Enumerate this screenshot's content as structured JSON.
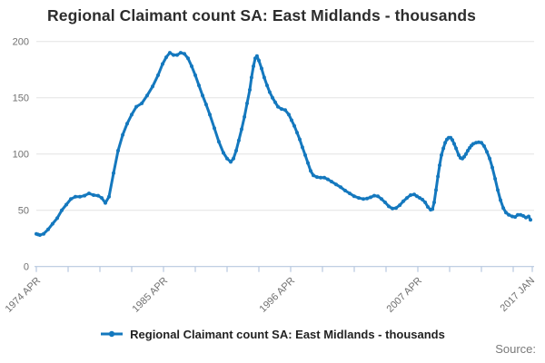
{
  "title": "Regional Claimant count SA: East Midlands - thousands",
  "legend": {
    "marker_icon": "line-dot-icon",
    "label": "Regional Claimant count SA: East Midlands - thousands"
  },
  "source_label": "Source:",
  "colors": {
    "line": "#1478BE",
    "grid": "#E4E4E4",
    "axis": "#B7C8DF",
    "tick_label": "#707070",
    "title_text": "#2D2D2D",
    "legend_text": "#222222",
    "source_text": "#7A7A7A",
    "background": "#FFFFFF"
  },
  "chart_data": {
    "type": "line",
    "title": "Regional Claimant count SA: East Midlands - thousands",
    "series_name": "Regional Claimant count SA: East Midlands - thousands",
    "units": "thousands",
    "grid": "horizontal-only",
    "legend_position": "bottom-center",
    "y_axis": {
      "ticks": [
        0,
        50,
        100,
        150,
        200
      ],
      "range": [
        0,
        200
      ]
    },
    "x_axis": {
      "range_year": [
        1974.25,
        2017.0
      ],
      "minor_tick_spacing_px": 35,
      "labels": [
        {
          "year": 1974.25,
          "text": "1974 APR"
        },
        {
          "year": 1985.25,
          "text": "1985 APR"
        },
        {
          "year": 1996.25,
          "text": "1996 APR"
        },
        {
          "year": 2007.25,
          "text": "2007 APR"
        },
        {
          "year": 2017.0,
          "text": "2017 JAN"
        }
      ]
    },
    "points": [
      [
        1974.25,
        29
      ],
      [
        1974.4,
        28.5
      ],
      [
        1974.56,
        28
      ],
      [
        1974.88,
        29
      ],
      [
        1975.27,
        33
      ],
      [
        1975.66,
        38
      ],
      [
        1976.06,
        43
      ],
      [
        1976.45,
        50
      ],
      [
        1976.84,
        55
      ],
      [
        1977.24,
        60
      ],
      [
        1977.63,
        62
      ],
      [
        1978.02,
        62
      ],
      [
        1978.42,
        63
      ],
      [
        1978.81,
        65
      ],
      [
        1979.2,
        63.5
      ],
      [
        1979.59,
        63
      ],
      [
        1979.91,
        61
      ],
      [
        1980.22,
        56.5
      ],
      [
        1980.54,
        62
      ],
      [
        1980.93,
        83
      ],
      [
        1981.32,
        103
      ],
      [
        1981.72,
        117
      ],
      [
        1982.11,
        127
      ],
      [
        1982.5,
        135
      ],
      [
        1982.9,
        142
      ],
      [
        1983.37,
        145
      ],
      [
        1983.84,
        152
      ],
      [
        1984.31,
        160
      ],
      [
        1984.78,
        170
      ],
      [
        1985.17,
        180
      ],
      [
        1985.49,
        186
      ],
      [
        1985.8,
        190
      ],
      [
        1986.12,
        188
      ],
      [
        1986.43,
        188
      ],
      [
        1986.74,
        190
      ],
      [
        1987.06,
        189
      ],
      [
        1987.37,
        185
      ],
      [
        1987.69,
        178
      ],
      [
        1988.0,
        170
      ],
      [
        1988.32,
        161
      ],
      [
        1988.63,
        152
      ],
      [
        1988.94,
        144
      ],
      [
        1989.26,
        135
      ],
      [
        1989.65,
        123
      ],
      [
        1990.04,
        111
      ],
      [
        1990.44,
        101
      ],
      [
        1990.75,
        96
      ],
      [
        1991.07,
        93
      ],
      [
        1991.3,
        96
      ],
      [
        1991.54,
        103
      ],
      [
        1991.77,
        112
      ],
      [
        1992.01,
        122
      ],
      [
        1992.25,
        133
      ],
      [
        1992.48,
        145
      ],
      [
        1992.72,
        157
      ],
      [
        1992.87,
        168
      ],
      [
        1993.03,
        178
      ],
      [
        1993.19,
        185
      ],
      [
        1993.34,
        187
      ],
      [
        1993.5,
        183
      ],
      [
        1993.74,
        176
      ],
      [
        1993.97,
        168
      ],
      [
        1994.21,
        161
      ],
      [
        1994.44,
        155
      ],
      [
        1994.68,
        150
      ],
      [
        1994.92,
        146
      ],
      [
        1995.15,
        142
      ],
      [
        1995.47,
        140
      ],
      [
        1995.78,
        139
      ],
      [
        1996.1,
        135
      ],
      [
        1996.33,
        130
      ],
      [
        1996.57,
        125
      ],
      [
        1996.8,
        119
      ],
      [
        1997.04,
        113
      ],
      [
        1997.27,
        106
      ],
      [
        1997.51,
        99
      ],
      [
        1997.75,
        92
      ],
      [
        1997.98,
        85
      ],
      [
        1998.22,
        81
      ],
      [
        1998.53,
        79.5
      ],
      [
        1998.85,
        79
      ],
      [
        1999.16,
        79
      ],
      [
        1999.47,
        77.5
      ],
      [
        1999.79,
        75.5
      ],
      [
        2000.18,
        73
      ],
      [
        2000.58,
        70.5
      ],
      [
        2000.97,
        67.5
      ],
      [
        2001.36,
        65
      ],
      [
        2001.75,
        62.5
      ],
      [
        2002.15,
        61
      ],
      [
        2002.54,
        60
      ],
      [
        2002.86,
        60.5
      ],
      [
        2003.17,
        61.5
      ],
      [
        2003.48,
        63
      ],
      [
        2003.8,
        62.5
      ],
      [
        2004.11,
        60
      ],
      [
        2004.43,
        57
      ],
      [
        2004.74,
        53.5
      ],
      [
        2005.06,
        51.5
      ],
      [
        2005.37,
        52
      ],
      [
        2005.69,
        54.5
      ],
      [
        2006.0,
        58
      ],
      [
        2006.31,
        61
      ],
      [
        2006.63,
        63.5
      ],
      [
        2006.94,
        64
      ],
      [
        2007.18,
        62.5
      ],
      [
        2007.42,
        61
      ],
      [
        2007.65,
        59.5
      ],
      [
        2007.89,
        57
      ],
      [
        2008.12,
        53
      ],
      [
        2008.36,
        50.5
      ],
      [
        2008.52,
        51
      ],
      [
        2008.67,
        57
      ],
      [
        2008.83,
        68
      ],
      [
        2008.99,
        80
      ],
      [
        2009.14,
        90
      ],
      [
        2009.3,
        99
      ],
      [
        2009.46,
        105
      ],
      [
        2009.62,
        110
      ],
      [
        2009.77,
        113
      ],
      [
        2009.93,
        114.5
      ],
      [
        2010.09,
        114.5
      ],
      [
        2010.24,
        112.5
      ],
      [
        2010.4,
        109
      ],
      [
        2010.56,
        105
      ],
      [
        2010.79,
        99
      ],
      [
        2010.95,
        96.5
      ],
      [
        2011.11,
        96
      ],
      [
        2011.26,
        97.5
      ],
      [
        2011.42,
        100
      ],
      [
        2011.58,
        103
      ],
      [
        2011.74,
        105.5
      ],
      [
        2011.89,
        107.5
      ],
      [
        2012.05,
        109
      ],
      [
        2012.29,
        110
      ],
      [
        2012.52,
        110.5
      ],
      [
        2012.76,
        110
      ],
      [
        2012.99,
        107
      ],
      [
        2013.23,
        102
      ],
      [
        2013.47,
        96
      ],
      [
        2013.7,
        88
      ],
      [
        2013.94,
        78
      ],
      [
        2014.17,
        68
      ],
      [
        2014.41,
        59
      ],
      [
        2014.65,
        52
      ],
      [
        2014.88,
        48
      ],
      [
        2015.12,
        46
      ],
      [
        2015.43,
        44.5
      ],
      [
        2015.67,
        44
      ],
      [
        2015.9,
        46
      ],
      [
        2016.14,
        46
      ],
      [
        2016.37,
        45
      ],
      [
        2016.61,
        43.5
      ],
      [
        2016.84,
        44.5
      ],
      [
        2017.0,
        41.5
      ]
    ]
  }
}
